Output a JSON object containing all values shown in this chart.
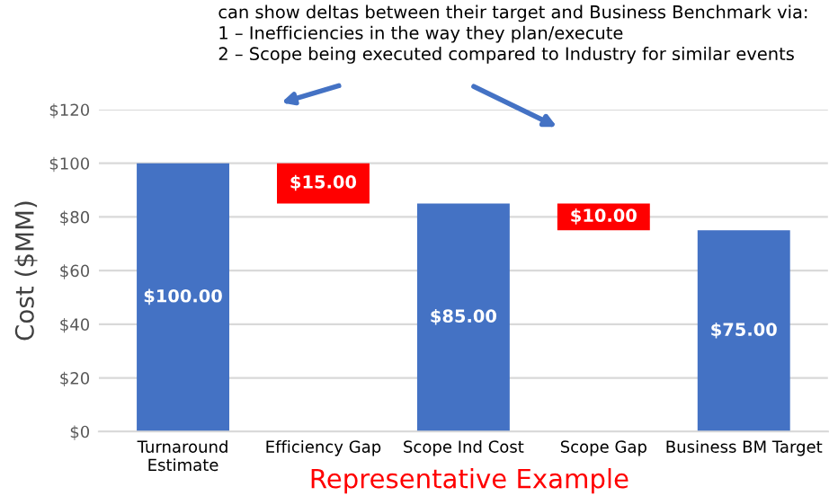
{
  "chart_data": {
    "type": "bar",
    "ylabel": "Cost ($MM)",
    "categories": [
      "Turnaround\nEstimate",
      "Efficiency Gap",
      "Scope Ind Cost",
      "Scope Gap",
      "Business BM Target"
    ],
    "values": [
      100,
      15,
      85,
      10,
      75
    ],
    "base": [
      0,
      85,
      0,
      75,
      0
    ],
    "colors": [
      "#4472c4",
      "#ff0000",
      "#4472c4",
      "#ff0000",
      "#4472c4"
    ],
    "value_labels": [
      "$100.00",
      "$15.00",
      "$85.00",
      "$10.00",
      "$75.00"
    ],
    "ylim": [
      0,
      120
    ],
    "yticks": [
      {
        "value": 0,
        "label": "$0"
      },
      {
        "value": 20,
        "label": "$20"
      },
      {
        "value": 40,
        "label": "$40"
      },
      {
        "value": 60,
        "label": "$60"
      },
      {
        "value": 80,
        "label": "$80"
      },
      {
        "value": 100,
        "label": "$100"
      },
      {
        "value": 120,
        "label": "$120"
      }
    ],
    "grid": "y",
    "annotations": [
      "can show deltas between their target and Business Benchmark via:\n1 – Inefficiencies in the way they plan/execute\n2 – Scope being executed compared to Industry for similar events",
      "Representative Example"
    ]
  }
}
